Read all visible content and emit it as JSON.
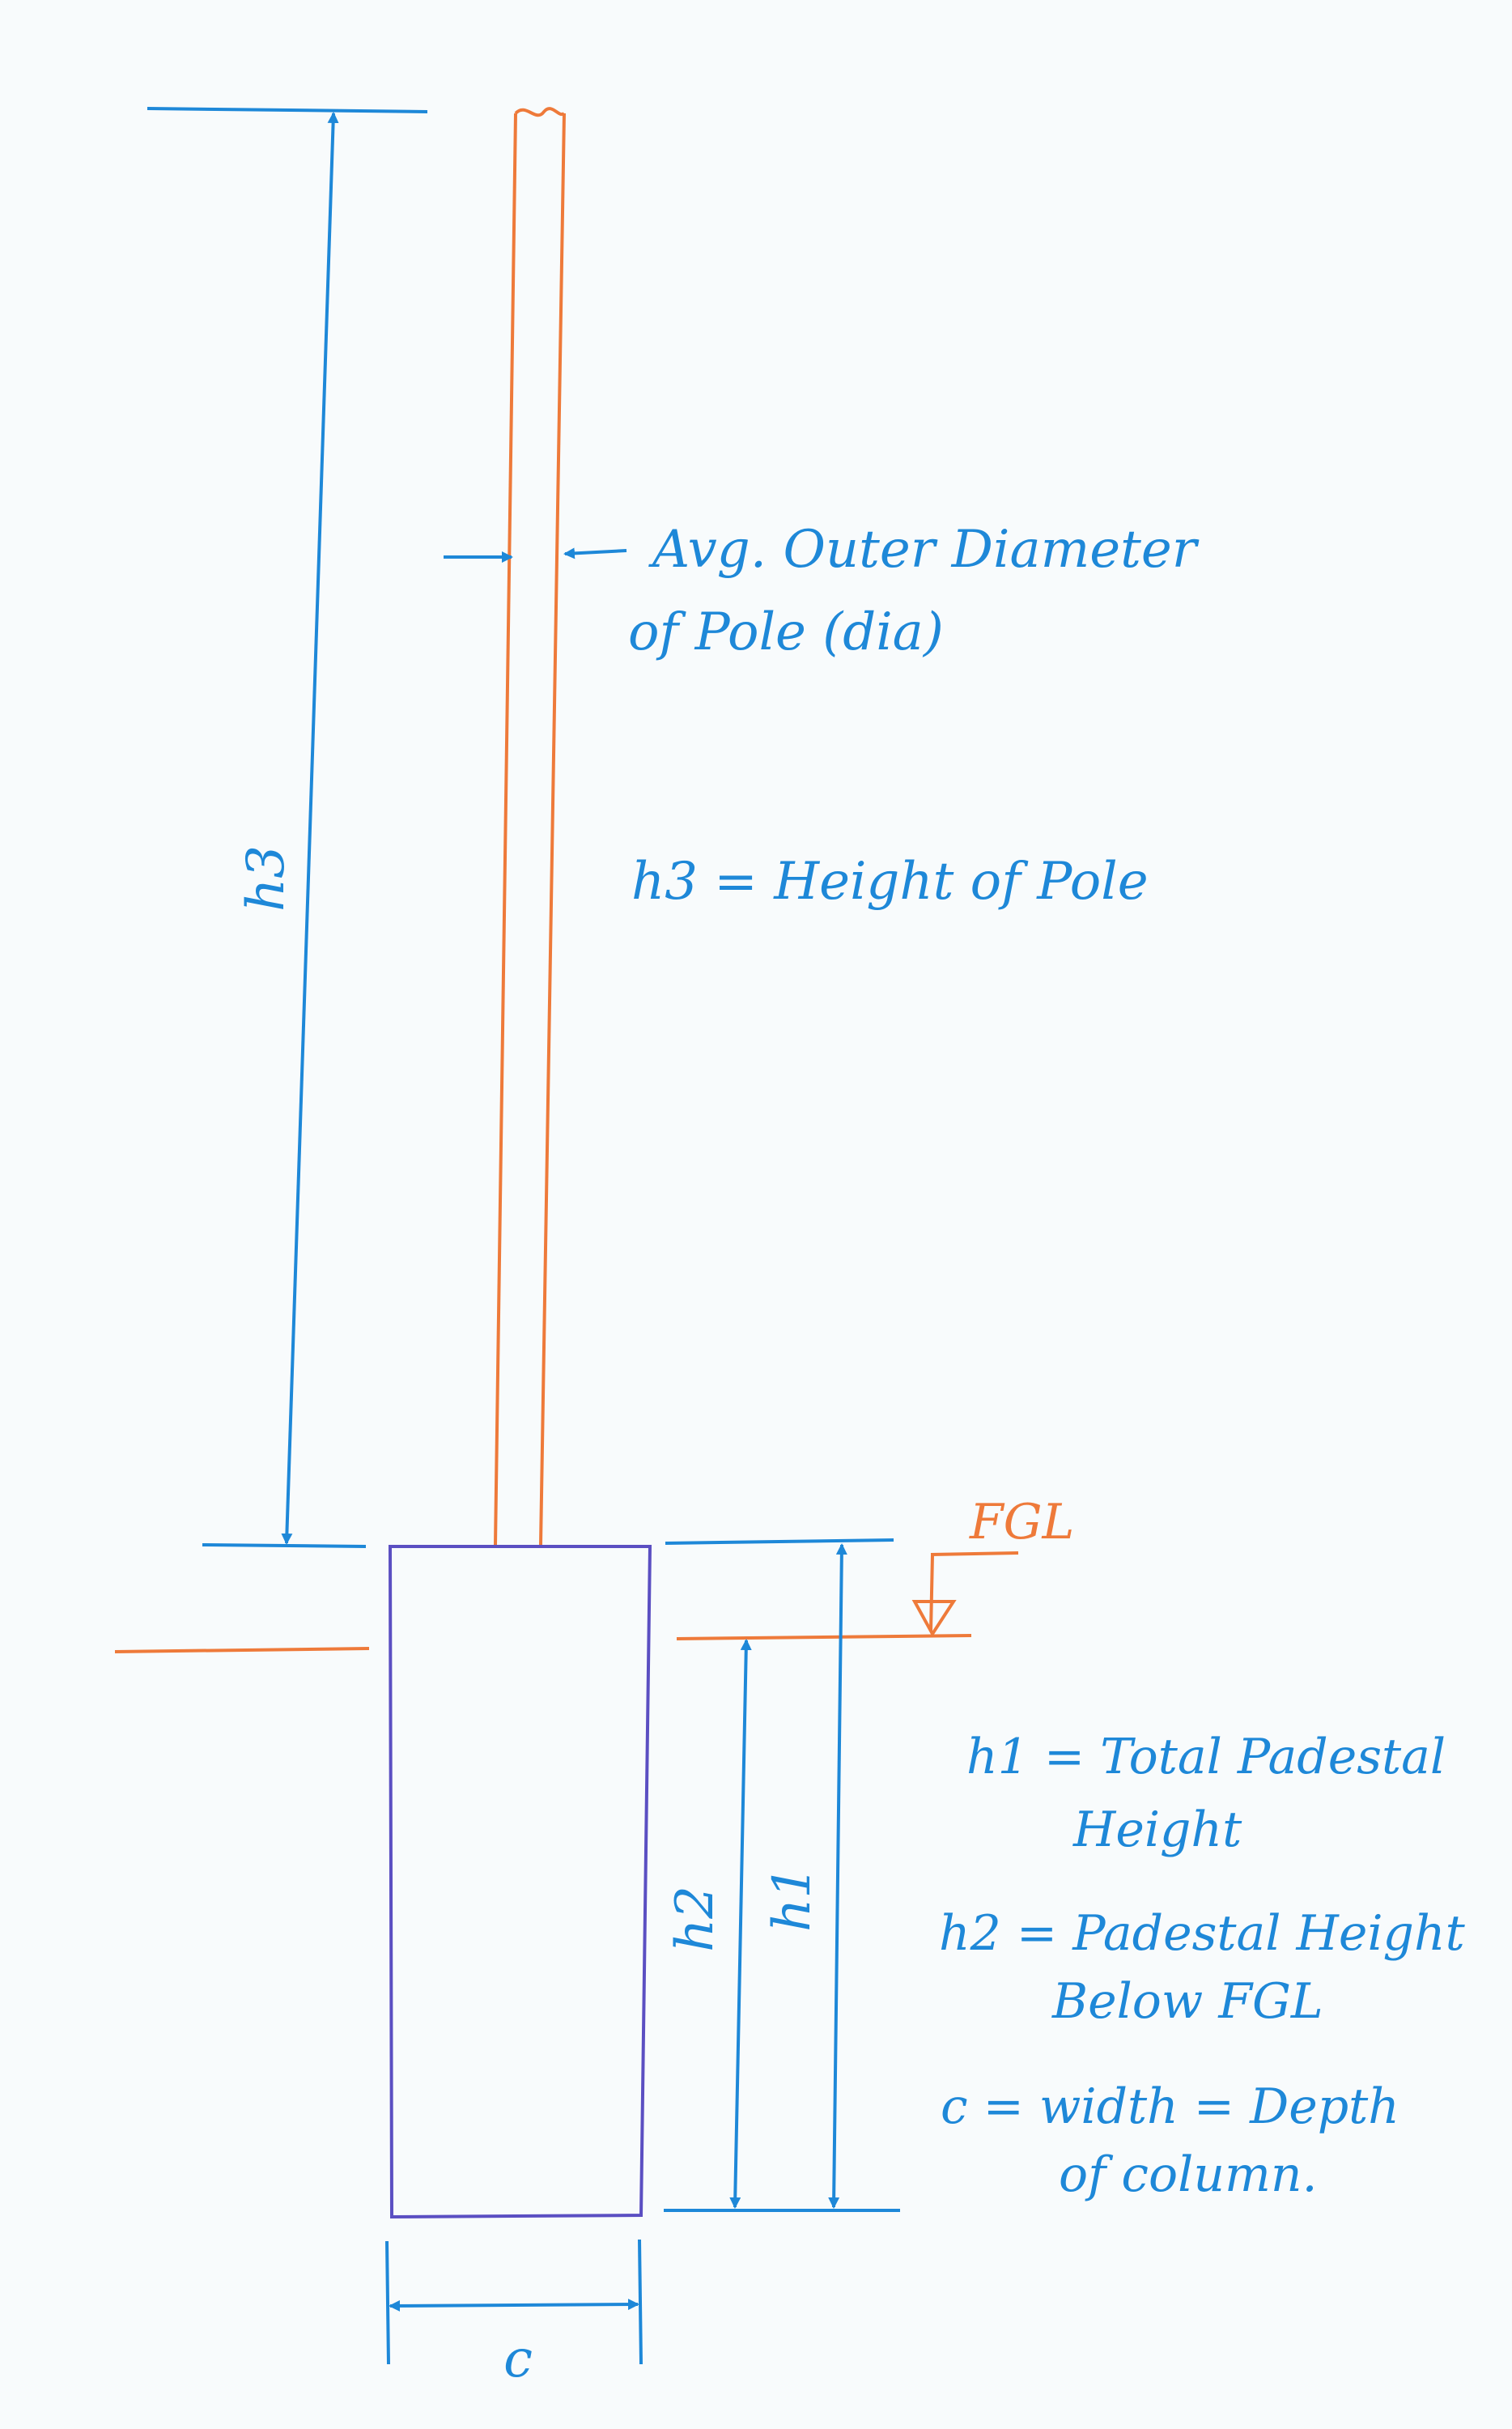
{
  "colors": {
    "blue": "#1e88d8",
    "orange": "#ee7a3a",
    "purple": "#5b4fc2",
    "paper": "#f8fbfc"
  },
  "labels": {
    "pole_dia_line1": "Avg. Outer Diameter",
    "pole_dia_line2": "of Pole (dia)",
    "h3_def": "h3 = Height of Pole",
    "fgl": "FGL",
    "h1_def_line1": "h1 = Total Padestal",
    "h1_def_line2": "Height",
    "h2_def_line1": "h2 = Padestal Height",
    "h2_def_line2": "Below FGL",
    "c_def_line1": "c = width = Depth",
    "c_def_line2": "of column.",
    "dim_h3": "h3",
    "dim_h2": "h2",
    "dim_h1": "h1",
    "dim_c": "c"
  }
}
